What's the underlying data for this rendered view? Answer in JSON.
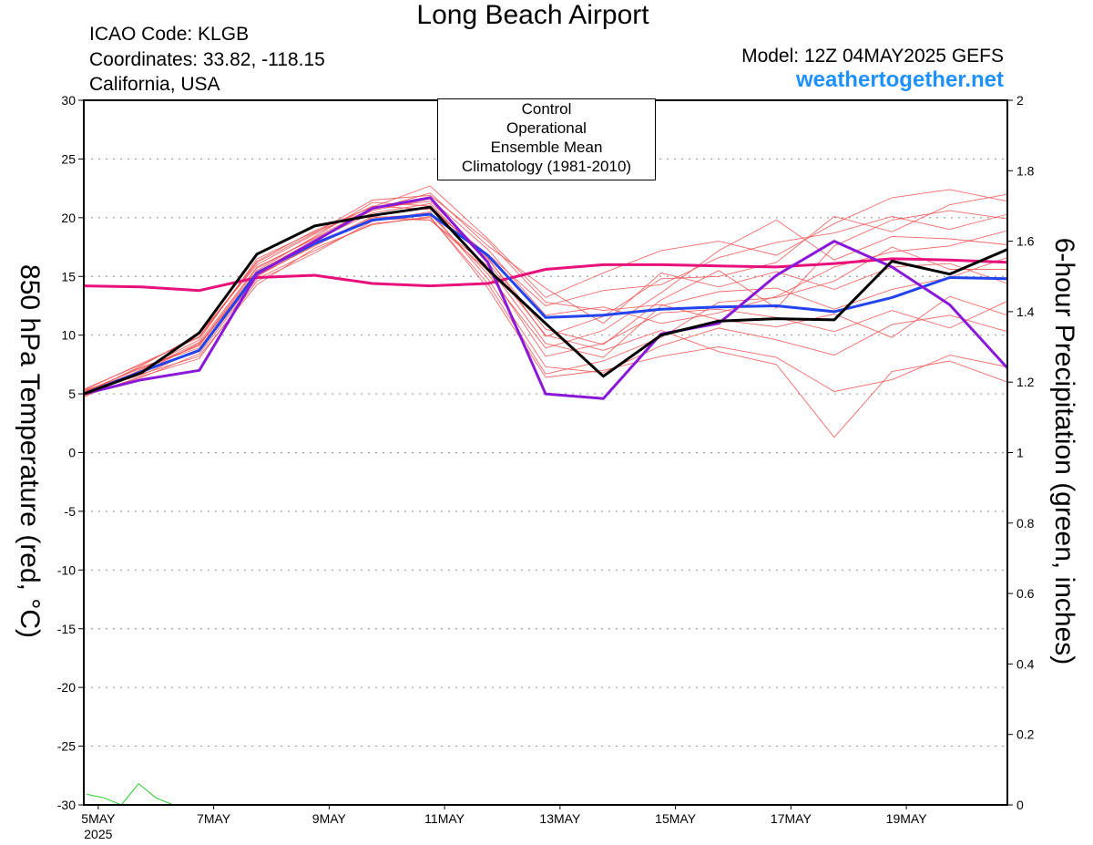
{
  "header": {
    "title": "Long Beach Airport",
    "icao": "ICAO Code: KLGB",
    "coords": "Coordinates: 33.82, -118.15",
    "location": "California, USA",
    "model": "Model: 12Z 04MAY2025 GEFS",
    "site": "weathertogether.net"
  },
  "chart_data": {
    "type": "line",
    "xlabel": "",
    "ylabel": "850 hPa Temperature (red, °C)",
    "y2label": "6-hour Precipitation (green, inches)",
    "x_unit": "days since 04MAY2025 12Z",
    "xlim": [
      0.25,
      16.25
    ],
    "ylim": [
      -30,
      30
    ],
    "y2lim": [
      0,
      2
    ],
    "yticks": [
      -30,
      -25,
      -20,
      -15,
      -10,
      -5,
      0,
      5,
      10,
      15,
      20,
      25,
      30
    ],
    "y2ticks": [
      0,
      0.2,
      0.4,
      0.6,
      0.8,
      1,
      1.2,
      1.4,
      1.6,
      1.8,
      2
    ],
    "y2tick_labels": [
      "0",
      "0.2",
      "0.4",
      "0.6",
      "0.8",
      "1",
      "1.2",
      "1.4",
      "1.6",
      "1.8",
      "2"
    ],
    "xticks": [
      {
        "x": 0.5,
        "label": "5MAY",
        "sub": "2025"
      },
      {
        "x": 2.5,
        "label": "7MAY",
        "sub": ""
      },
      {
        "x": 4.5,
        "label": "9MAY",
        "sub": ""
      },
      {
        "x": 6.5,
        "label": "11MAY",
        "sub": ""
      },
      {
        "x": 8.5,
        "label": "13MAY",
        "sub": ""
      },
      {
        "x": 10.5,
        "label": "15MAY",
        "sub": ""
      },
      {
        "x": 12.5,
        "label": "17MAY",
        "sub": ""
      },
      {
        "x": 14.5,
        "label": "19MAY",
        "sub": ""
      }
    ],
    "grid": "horizontal dotted",
    "legend": {
      "position": "top-center",
      "entries": [
        {
          "label": "Control",
          "color": "#000000"
        },
        {
          "label": "Operational",
          "color": "#8a18d8"
        },
        {
          "label": "Ensemble Mean",
          "color": "#2244ee"
        },
        {
          "label": "Climatology (1981-2010)",
          "color": "#e8107a"
        }
      ]
    },
    "colors": {
      "control": "#000000",
      "operational": "#8a18d8",
      "mean": "#2244ee",
      "climatology": "#e8107a",
      "members": "#f05050",
      "precip": "#22cc22"
    },
    "series": [
      {
        "name": "Control",
        "x": [
          0.25,
          1.25,
          2.25,
          3.25,
          4.25,
          5.25,
          6.25,
          7.25,
          8.25,
          9.25,
          10.25,
          11.25,
          12.25,
          13.25,
          14.25,
          15.25,
          16.25
        ],
        "values": [
          5.0,
          6.8,
          10.2,
          16.9,
          19.3,
          20.2,
          20.9,
          15.6,
          11.0,
          6.5,
          10.0,
          11.2,
          11.4,
          11.3,
          16.3,
          15.2,
          17.3
        ]
      },
      {
        "name": "Operational",
        "x": [
          0.25,
          1.25,
          2.25,
          3.25,
          4.25,
          5.25,
          6.25,
          7.25,
          8.25,
          9.25,
          10.25,
          11.25,
          12.25,
          13.25,
          14.25,
          15.25,
          16.25
        ],
        "values": [
          5.0,
          6.2,
          7.0,
          15.2,
          18.0,
          20.8,
          21.7,
          16.2,
          5.0,
          4.6,
          10.1,
          11.0,
          15.1,
          18.0,
          15.8,
          12.6,
          7.2
        ]
      },
      {
        "name": "Ensemble Mean",
        "x": [
          0.25,
          1.25,
          2.25,
          3.25,
          4.25,
          5.25,
          6.25,
          7.25,
          8.25,
          9.25,
          10.25,
          11.25,
          12.25,
          13.25,
          14.25,
          15.25,
          16.25
        ],
        "values": [
          5.0,
          6.9,
          8.7,
          15.3,
          17.8,
          19.8,
          20.3,
          16.8,
          11.5,
          11.7,
          12.2,
          12.4,
          12.5,
          12.0,
          13.2,
          14.9,
          14.8
        ]
      },
      {
        "name": "Climatology (1981-2010)",
        "x": [
          0.25,
          1.25,
          2.25,
          3.25,
          4.25,
          5.25,
          6.25,
          7.25,
          8.25,
          9.25,
          10.25,
          11.25,
          12.25,
          13.25,
          14.25,
          15.25,
          16.25
        ],
        "values": [
          14.2,
          14.1,
          13.8,
          14.9,
          15.1,
          14.4,
          14.2,
          14.4,
          15.6,
          16.0,
          16.0,
          15.9,
          15.8,
          16.1,
          16.5,
          16.4,
          16.2
        ]
      }
    ],
    "members": {
      "x": [
        0.25,
        1.25,
        2.25,
        3.25,
        4.25,
        5.25,
        6.25,
        7.25,
        8.25,
        9.25,
        10.25,
        11.25,
        12.25,
        13.25,
        14.25,
        15.25,
        16.25
      ],
      "values": [
        [
          5.2,
          7.2,
          9.1,
          15.5,
          18.4,
          21.3,
          21.0,
          16.5,
          10.5,
          9.2,
          13.0,
          15.5,
          12.3,
          17.6,
          19.8,
          20.6,
          19.9
        ],
        [
          4.8,
          6.5,
          8.0,
          14.6,
          17.0,
          19.7,
          20.5,
          14.8,
          7.3,
          6.8,
          9.1,
          10.6,
          9.6,
          8.3,
          10.9,
          11.7,
          10.3
        ],
        [
          5.4,
          7.5,
          9.9,
          16.3,
          18.9,
          20.9,
          22.7,
          18.2,
          13.2,
          15.3,
          17.2,
          18.0,
          16.8,
          19.5,
          21.7,
          22.4,
          21.4
        ],
        [
          5.1,
          6.9,
          8.6,
          15.0,
          17.7,
          20.1,
          19.8,
          15.9,
          9.3,
          8.1,
          12.5,
          13.7,
          14.0,
          12.2,
          13.9,
          14.9,
          16.6
        ],
        [
          4.9,
          7.0,
          9.4,
          15.8,
          18.2,
          20.6,
          21.6,
          17.3,
          11.7,
          12.4,
          11.0,
          11.9,
          13.3,
          15.8,
          17.1,
          17.6,
          18.9
        ],
        [
          5.3,
          6.7,
          8.2,
          14.3,
          17.4,
          19.4,
          20.1,
          14.0,
          6.4,
          7.0,
          8.2,
          9.0,
          8.1,
          5.2,
          6.2,
          8.3,
          7.3
        ],
        [
          5.0,
          7.4,
          10.1,
          16.0,
          18.6,
          21.0,
          20.7,
          16.9,
          12.5,
          13.8,
          14.3,
          16.6,
          17.9,
          18.7,
          20.1,
          19.0,
          20.3
        ],
        [
          5.2,
          6.6,
          8.8,
          15.2,
          17.9,
          19.9,
          19.8,
          15.5,
          8.2,
          9.3,
          11.9,
          12.2,
          11.5,
          10.3,
          12.1,
          10.6,
          12.9
        ],
        [
          4.7,
          7.1,
          9.6,
          16.5,
          18.8,
          20.7,
          22.1,
          17.6,
          14.0,
          11.0,
          15.3,
          14.1,
          15.4,
          13.9,
          15.8,
          16.1,
          14.4
        ],
        [
          5.1,
          7.3,
          8.9,
          15.4,
          18.1,
          20.4,
          21.2,
          16.2,
          10.0,
          8.7,
          10.4,
          8.6,
          7.5,
          1.3,
          6.9,
          7.8,
          6.0
        ],
        [
          5.0,
          6.8,
          9.3,
          15.1,
          17.6,
          20.0,
          20.3,
          15.2,
          8.9,
          10.4,
          13.6,
          17.2,
          19.8,
          16.4,
          18.4,
          18.2,
          17.7
        ],
        [
          5.3,
          7.6,
          9.8,
          16.2,
          18.7,
          21.5,
          21.9,
          18.0,
          12.8,
          12.1,
          12.6,
          11.3,
          10.7,
          11.8,
          9.8,
          13.3,
          11.7
        ],
        [
          4.9,
          6.4,
          8.4,
          14.8,
          17.2,
          19.5,
          20.0,
          14.4,
          6.7,
          7.8,
          9.8,
          12.8,
          13.2,
          14.6,
          17.5,
          15.6,
          15.6
        ],
        [
          5.2,
          7.0,
          9.2,
          15.7,
          18.3,
          20.8,
          21.4,
          16.6,
          9.9,
          11.6,
          14.8,
          15.0,
          16.2,
          20.1,
          18.8,
          21.1,
          22.0
        ]
      ]
    },
    "precip": {
      "x": [
        0.3,
        0.6,
        0.9,
        1.2,
        1.5,
        1.8,
        2.1,
        2.4,
        2.7
      ],
      "values": [
        0.03,
        0.02,
        0.0,
        0.06,
        0.02,
        0.0,
        0.0,
        0.0,
        0.0
      ]
    }
  }
}
